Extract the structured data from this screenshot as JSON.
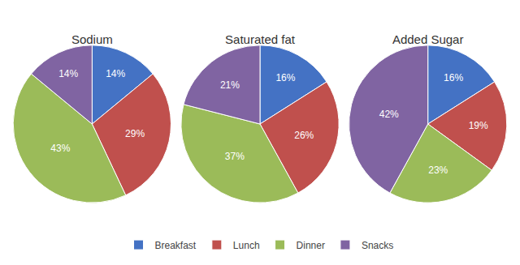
{
  "chart_data": [
    {
      "type": "pie",
      "title": "Sodium",
      "categories": [
        "Breakfast",
        "Lunch",
        "Dinner",
        "Snacks"
      ],
      "values": [
        14,
        29,
        43,
        14
      ],
      "value_labels": [
        "14%",
        "29%",
        "43%",
        "14%"
      ],
      "colors": [
        "#4472C4",
        "#C0504D",
        "#9BBB59",
        "#8064A2"
      ],
      "data_labels": true,
      "legend": "bottom"
    },
    {
      "type": "pie",
      "title": "Saturated fat",
      "categories": [
        "Breakfast",
        "Lunch",
        "Dinner",
        "Snacks"
      ],
      "values": [
        16,
        26,
        37,
        21
      ],
      "value_labels": [
        "16%",
        "26%",
        "37%",
        "21%"
      ],
      "colors": [
        "#4472C4",
        "#C0504D",
        "#9BBB59",
        "#8064A2"
      ],
      "data_labels": true,
      "legend": "bottom"
    },
    {
      "type": "pie",
      "title": "Added Sugar",
      "categories": [
        "Breakfast",
        "Lunch",
        "Dinner",
        "Snacks"
      ],
      "values": [
        16,
        19,
        23,
        42
      ],
      "value_labels": [
        "16%",
        "19%",
        "23%",
        "42%"
      ],
      "colors": [
        "#4472C4",
        "#C0504D",
        "#9BBB59",
        "#8064A2"
      ],
      "data_labels": true,
      "legend": "bottom"
    }
  ]
}
